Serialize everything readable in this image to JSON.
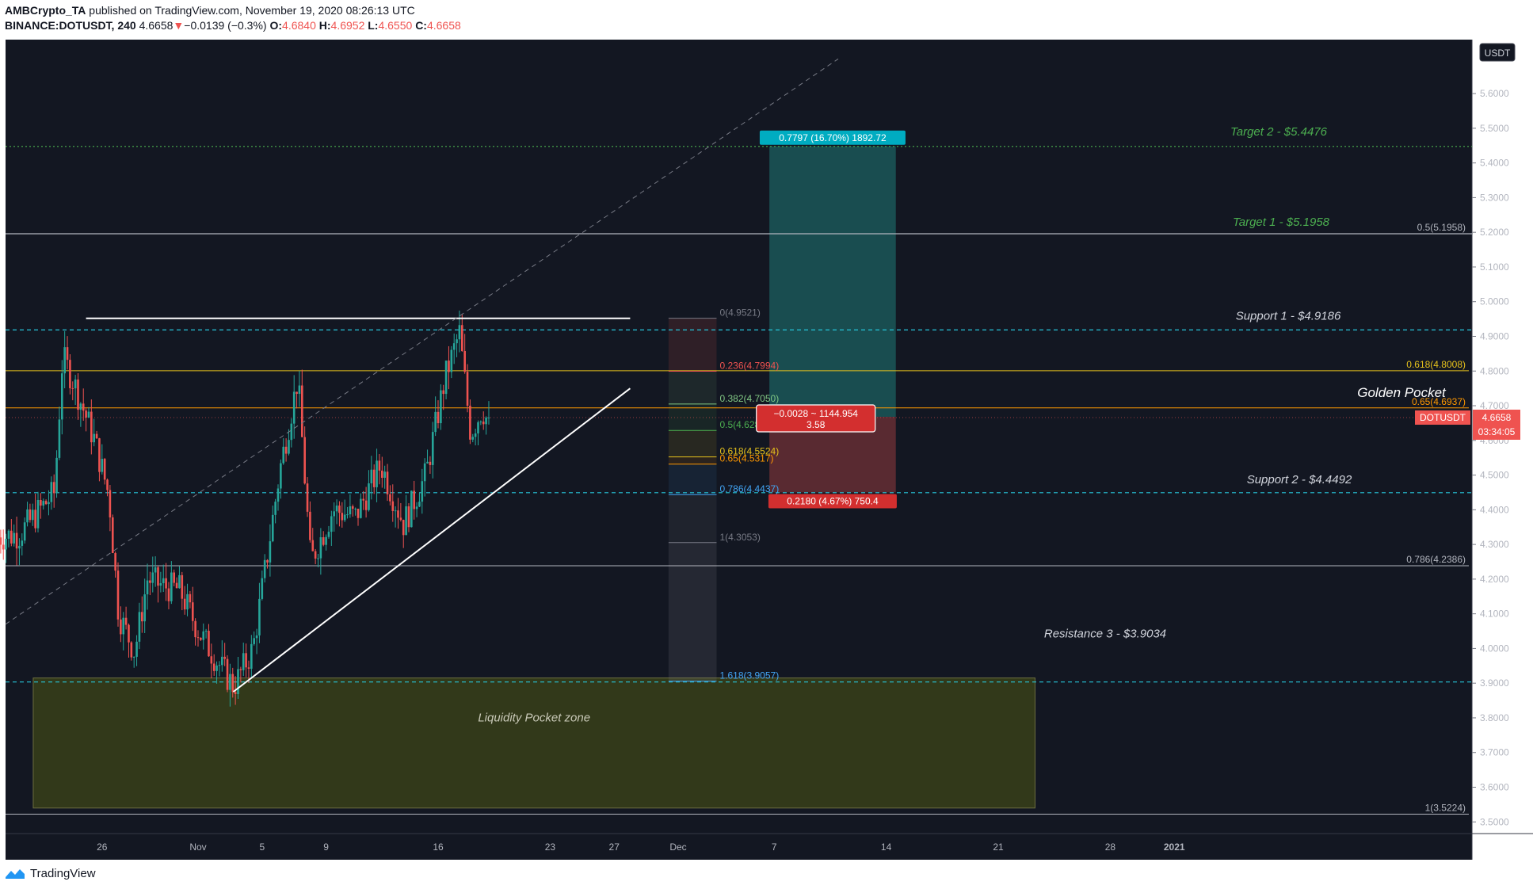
{
  "header": {
    "author": "AMBCrypto_TA",
    "published": "published on TradingView.com, November 19, 2020 08:26:13 UTC",
    "symbol": "BINANCE:DOTUSDT, 240",
    "last": "4.6658",
    "change": "−0.0139 (−0.3%)",
    "o_label": "O:",
    "o": "4.6840",
    "h_label": "H:",
    "h": "4.6952",
    "l_label": "L:",
    "l": "4.6550",
    "c_label": "C:",
    "c": "4.6658"
  },
  "footer": {
    "brand": "TradingView"
  },
  "chart_data": {
    "type": "candlestick",
    "currency": "USDT",
    "y_range": [
      3.43,
      5.7
    ],
    "y_ticks": [
      "5.6000",
      "5.5000",
      "5.4000",
      "5.3000",
      "5.2000",
      "5.1000",
      "5.0000",
      "4.9000",
      "4.8000",
      "4.7000",
      "4.6000",
      "4.5000",
      "4.4000",
      "4.3000",
      "4.2000",
      "4.1000",
      "4.0000",
      "3.9000",
      "3.8000",
      "3.7000",
      "3.6000",
      "3.5000"
    ],
    "x_ticks": [
      {
        "label": "26",
        "day": -6
      },
      {
        "label": "Nov",
        "day": 0
      },
      {
        "label": "5",
        "day": 4
      },
      {
        "label": "9",
        "day": 8
      },
      {
        "label": "16",
        "day": 15
      },
      {
        "label": "23",
        "day": 22
      },
      {
        "label": "27",
        "day": 26
      },
      {
        "label": "Dec",
        "day": 30
      },
      {
        "label": "7",
        "day": 36
      },
      {
        "label": "14",
        "day": 43
      },
      {
        "label": "21",
        "day": 50
      },
      {
        "label": "28",
        "day": 57
      },
      {
        "label": "2021",
        "day": 61
      }
    ],
    "colors": {
      "background": "#131722",
      "up": "#26a69a",
      "down": "#ef5350",
      "cyan": "#26c6da",
      "green": "#4caf50",
      "yellow": "#e6c21c",
      "orange": "#ff9800",
      "grid_white": "#b2b5be"
    },
    "current_price": {
      "value": 4.6658,
      "symbol": "DOTUSDT",
      "price_label": "4.6658",
      "countdown": "03:34:05"
    },
    "horizontal_levels": [
      {
        "name": "Target 2 - $5.4476",
        "value": 5.4476,
        "style": "dotted",
        "color": "#4caf50"
      },
      {
        "name": "Target 1 - $5.1958",
        "value": 5.1958,
        "style": "solid",
        "color": "#b2b5be"
      },
      {
        "name": "Support 1 - $4.9186",
        "value": 4.9186,
        "style": "dashed",
        "color": "#26c6da"
      },
      {
        "name": "Support 2 - $4.4492",
        "value": 4.4492,
        "style": "dashed",
        "color": "#26c6da"
      },
      {
        "name": "Resistance 3 - $3.9034",
        "value": 3.9034,
        "style": "dashed",
        "color": "#26c6da"
      }
    ],
    "fib_right": [
      {
        "label": "0.5(5.1958)",
        "value": 5.1958,
        "color": "#b2b5be"
      },
      {
        "label": "0.618(4.8008)",
        "value": 4.8008,
        "color": "#e6c21c"
      },
      {
        "label": "0.65(4.6937)",
        "value": 4.6937,
        "color": "#ff9800"
      },
      {
        "label": "0.786(4.2386)",
        "value": 4.2386,
        "color": "#b2b5be"
      },
      {
        "label": "1(3.5224)",
        "value": 3.5224,
        "color": "#b2b5be"
      }
    ],
    "fib_retracement": [
      {
        "label": "0(4.9521)",
        "value": 4.9521,
        "color": "#787b86"
      },
      {
        "label": "0.236(4.7994)",
        "value": 4.7994,
        "color": "#ef5350"
      },
      {
        "label": "0.382(4.7050)",
        "value": 4.705,
        "color": "#81c784"
      },
      {
        "label": "0.5(4.6287)",
        "value": 4.6287,
        "color": "#4caf50"
      },
      {
        "label": "0.618(4.5524)",
        "value": 4.5524,
        "color": "#e6c21c"
      },
      {
        "label": "0.65(4.5317)",
        "value": 4.5317,
        "color": "#ff9800"
      },
      {
        "label": "0.786(4.4437)",
        "value": 4.4437,
        "color": "#42a5f5"
      },
      {
        "label": "1(4.3053)",
        "value": 4.3053,
        "color": "#787b86"
      },
      {
        "label": "1.618(3.9057)",
        "value": 3.9057,
        "color": "#42a5f5"
      }
    ],
    "annotations": {
      "golden_pocket": "Golden Pocket",
      "liquidity_zone": "Liquidity Pocket zone"
    },
    "position": {
      "entry": 4.668,
      "target": 5.4477,
      "stop": 4.45,
      "day_start": 35.7,
      "day_end": 43.6,
      "target_label": "0.7797 (16.70%) 1892.72",
      "stop_label": "0.2180 (4.67%) 750.4",
      "pnl_label_1": "−0.0028 ~ 1144.954",
      "pnl_label_2": "3.58"
    },
    "triangle": {
      "top": {
        "day_from": -7,
        "day_to": 27,
        "value": 4.952
      },
      "rising": {
        "day_from": 2.2,
        "v_from": 3.875,
        "day_to": 27,
        "v_to": 4.75
      }
    },
    "liquidity_zone": {
      "day_from": -10.3,
      "day_to": 52.3,
      "top": 3.915,
      "bottom": 3.54
    }
  }
}
